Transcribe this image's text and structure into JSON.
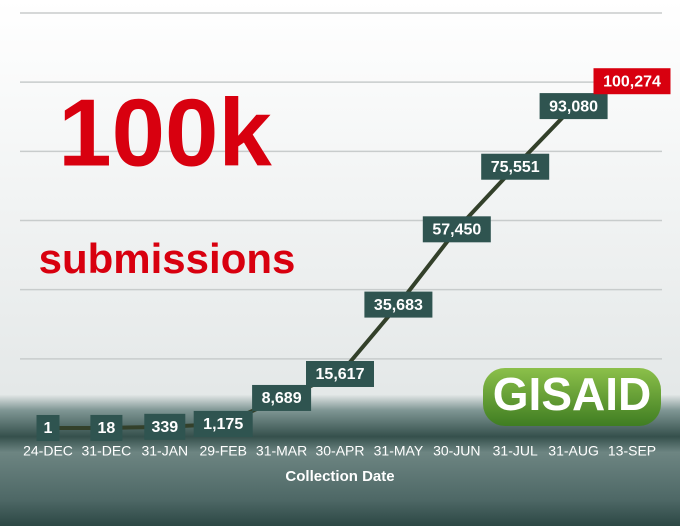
{
  "chart_data": {
    "type": "line",
    "annotations": [
      "100k",
      "submissions"
    ],
    "logo": "GISAID",
    "x_label": "Collection Date",
    "categories": [
      "24-DEC",
      "31-DEC",
      "31-JAN",
      "29-FEB",
      "31-MAR",
      "30-APR",
      "31-MAY",
      "30-JUN",
      "31-JUL",
      "31-AUG",
      "13-SEP"
    ],
    "series": [
      {
        "color": "#33402a",
        "values": [
          1,
          18,
          339,
          1175,
          8689,
          15617,
          35683,
          57450,
          75551,
          93080,
          100274
        ],
        "value_labels": [
          "1",
          "18",
          "339",
          "1,175",
          "8,689",
          "15,617",
          "35,683",
          "57,450",
          "75,551",
          "93,080",
          "100,274"
        ],
        "label_colors": [
          "#2f5450",
          "#2f5450",
          "#2f5450",
          "#2f5450",
          "#2f5450",
          "#2f5450",
          "#2f5450",
          "#2f5450",
          "#2f5450",
          "#2f5450",
          "#d8000f"
        ]
      }
    ],
    "ylim": [
      0,
      120000
    ],
    "yticks": [
      20000,
      40000,
      60000,
      80000,
      100000,
      120000
    ],
    "grid": true
  }
}
